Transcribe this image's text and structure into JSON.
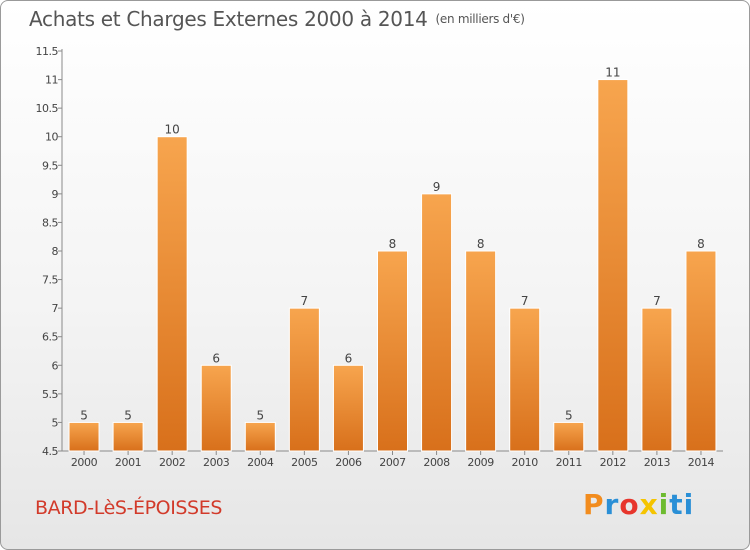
{
  "header": {
    "title": "Achats et Charges Externes 2000 à 2014",
    "subtitle": "(en milliers d'€)"
  },
  "footer": {
    "commune": "BARD-LèS-ÉPOISSES",
    "logo_text": "Proxiti"
  },
  "colors": {
    "bar_top": "#f7a54e",
    "bar_bottom": "#d8701b",
    "title": "#555555",
    "commune": "#d23a2a"
  },
  "chart_data": {
    "type": "bar",
    "title": "Achats et Charges Externes 2000 à 2014",
    "subtitle": "(en milliers d'€)",
    "categories": [
      "2000",
      "2001",
      "2002",
      "2003",
      "2004",
      "2005",
      "2006",
      "2007",
      "2008",
      "2009",
      "2010",
      "2011",
      "2012",
      "2013",
      "2014"
    ],
    "values": [
      5,
      5,
      10,
      6,
      5,
      7,
      6,
      8,
      9,
      8,
      7,
      5,
      11,
      7,
      8
    ],
    "data_labels": [
      "5",
      "5",
      "10",
      "6",
      "5",
      "7",
      "6",
      "8",
      "9",
      "8",
      "7",
      "5",
      "11",
      "7",
      "8"
    ],
    "ylim": [
      4.5,
      11.5
    ],
    "yticks": [
      4.5,
      5,
      5.5,
      6,
      6.5,
      7,
      7.5,
      8,
      8.5,
      9,
      9.5,
      10,
      10.5,
      11,
      11.5
    ],
    "ytick_labels": [
      "4.5",
      "5",
      "5.5",
      "6",
      "6.5",
      "7",
      "7.5",
      "8",
      "8.5",
      "9",
      "9.5",
      "10",
      "10.5",
      "11",
      "11.5"
    ],
    "grid": false,
    "legend": "none",
    "xlabel": "",
    "ylabel": ""
  }
}
